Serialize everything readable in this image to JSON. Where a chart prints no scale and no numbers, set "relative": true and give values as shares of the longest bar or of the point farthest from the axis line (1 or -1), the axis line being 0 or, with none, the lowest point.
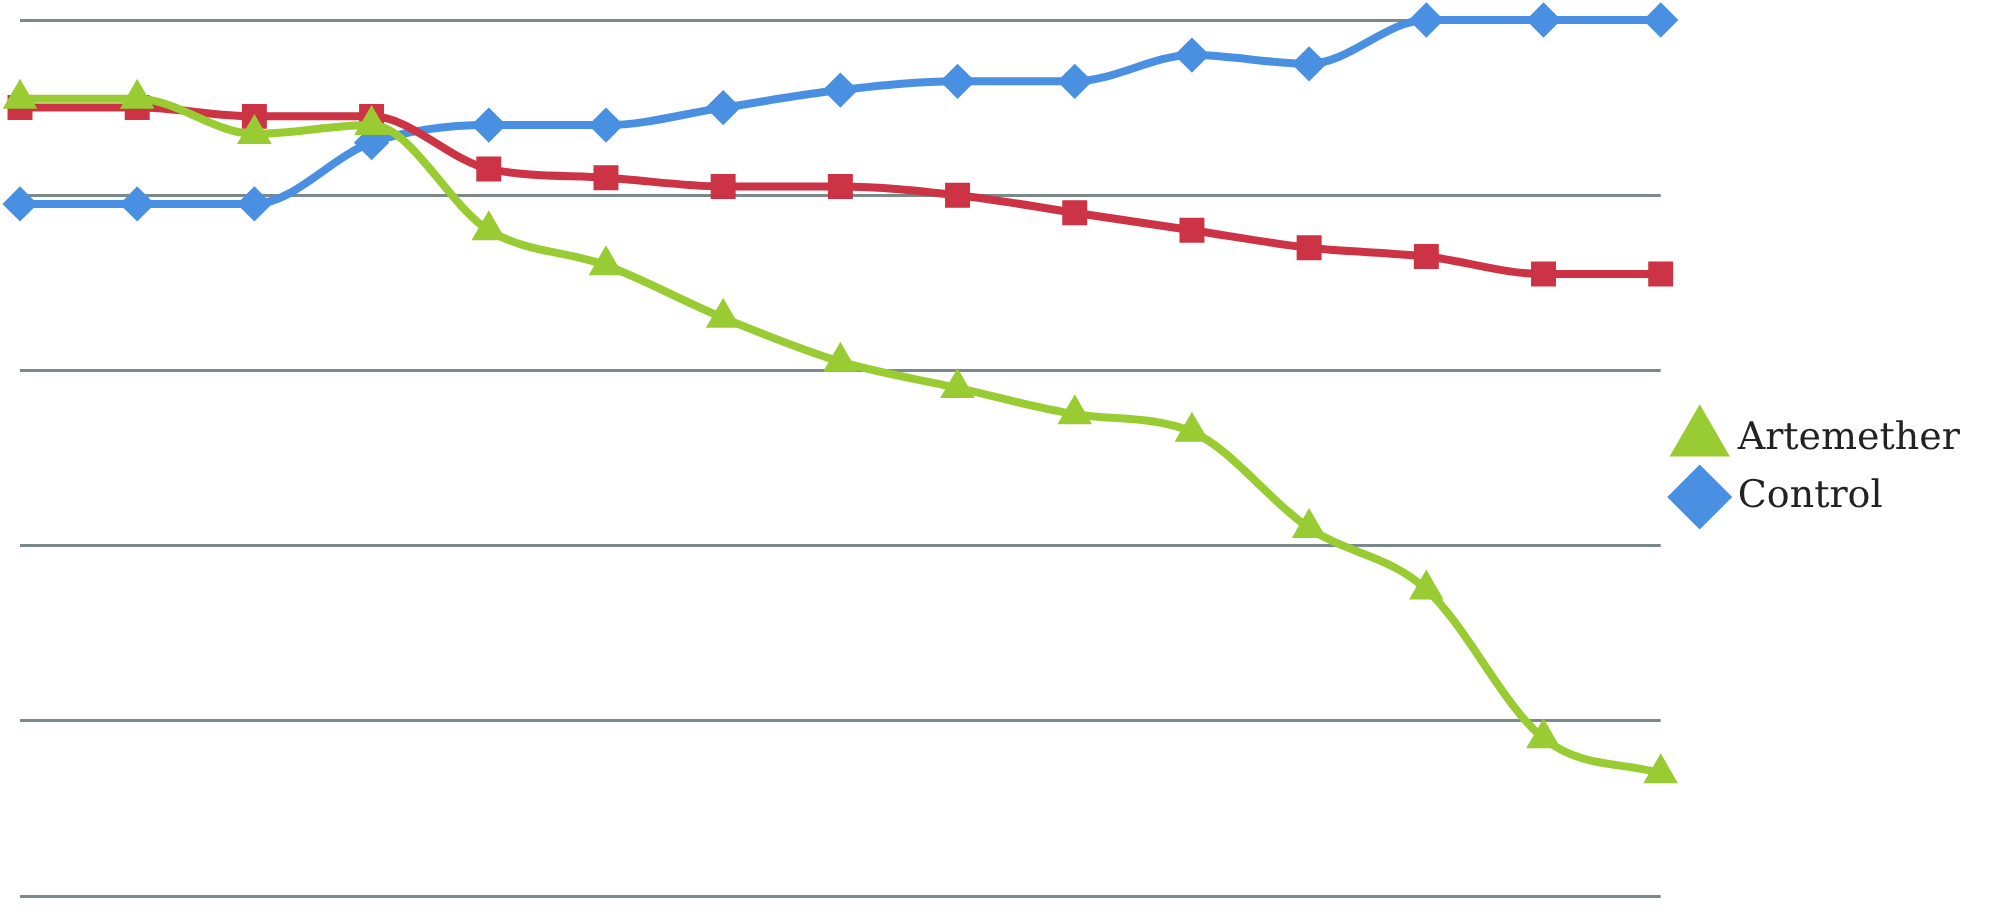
{
  "chart_data": {
    "type": "line",
    "relative": true,
    "grid": "y",
    "legend": "right",
    "categories": [
      null,
      null,
      null,
      null,
      null,
      null,
      null,
      null,
      null,
      null,
      null,
      null,
      null,
      null,
      null
    ],
    "series": [
      {
        "name": "Control",
        "color": "#4a90e2",
        "marker": "diamond",
        "values": [
          0.79,
          0.79,
          0.79,
          0.86,
          0.88,
          0.88,
          0.9,
          0.92,
          0.93,
          0.93,
          0.96,
          0.95,
          1,
          1,
          1
        ]
      },
      {
        "color": "#cc3344",
        "marker": "square",
        "values": [
          0.9,
          0.9,
          0.89,
          0.89,
          0.83,
          0.82,
          0.81,
          0.81,
          0.8,
          0.78,
          0.76,
          0.74,
          0.73,
          0.71,
          0.71
        ]
      },
      {
        "name": "Artemether",
        "color": "#99cc33",
        "marker": "triangle",
        "values": [
          0.91,
          0.91,
          0.87,
          0.88,
          0.76,
          0.72,
          0.66,
          0.61,
          0.58,
          0.55,
          0.53,
          0.42,
          0.35,
          0.18,
          0.14
        ]
      }
    ]
  }
}
